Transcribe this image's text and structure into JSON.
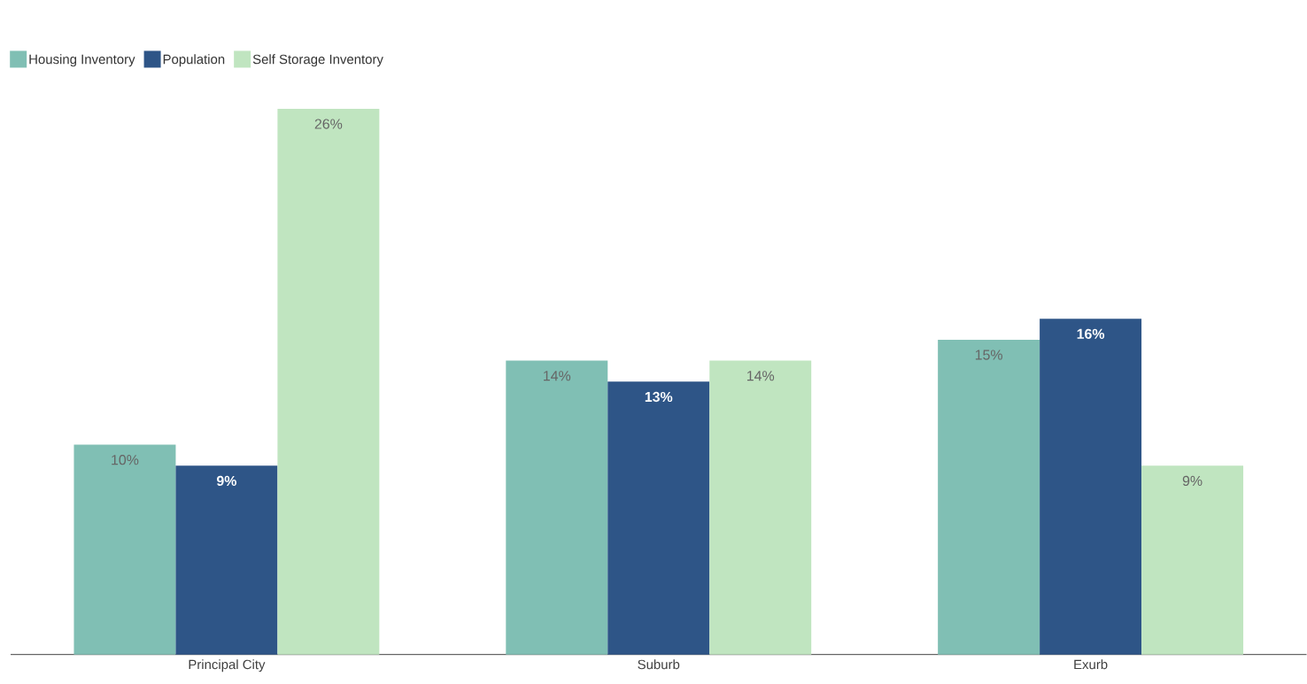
{
  "chart_data": {
    "type": "bar",
    "categories": [
      "Principal City",
      "Suburb",
      "Exurb"
    ],
    "series": [
      {
        "name": "Housing Inventory",
        "color": "#80bfb4",
        "values": [
          10,
          14,
          15
        ],
        "value_labels": [
          "10%",
          "14%",
          "15%"
        ]
      },
      {
        "name": "Population",
        "color": "#2e5587",
        "values": [
          9,
          13,
          16
        ],
        "value_labels": [
          "9%",
          "13%",
          "16%"
        ]
      },
      {
        "name": "Self Storage Inventory",
        "color": "#c0e5c0",
        "values": [
          26,
          14,
          9
        ],
        "value_labels": [
          "26%",
          "14%",
          "9%"
        ]
      }
    ],
    "legend": "top left"
  }
}
